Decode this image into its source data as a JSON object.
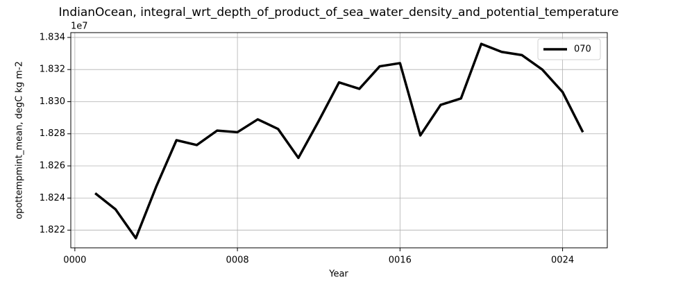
{
  "chart_data": {
    "type": "line",
    "title": "IndianOcean, integral_wrt_depth_of_product_of_sea_water_density_and_potential_temperature",
    "xlabel": "Year",
    "ylabel": "opottempmint_mean, degC kg m-2",
    "y_offset_label": "1e7",
    "x": [
      1,
      2,
      3,
      4,
      5,
      6,
      7,
      8,
      9,
      10,
      11,
      12,
      13,
      14,
      15,
      16,
      17,
      18,
      19,
      20,
      21,
      22,
      23,
      24,
      25
    ],
    "series": [
      {
        "name": "070",
        "color": "#000000",
        "values": [
          1.8243,
          1.8233,
          1.8215,
          1.8247,
          1.8276,
          1.8273,
          1.8282,
          1.8281,
          1.8289,
          1.8283,
          1.8265,
          1.8288,
          1.8312,
          1.8308,
          1.8322,
          1.8324,
          1.8279,
          1.8298,
          1.8302,
          1.8336,
          1.8331,
          1.8329,
          1.832,
          1.8306,
          1.8281
        ]
      }
    ],
    "xlim": [
      -0.2,
      26.2
    ],
    "ylim": [
      1.8209,
      1.8343
    ],
    "xticks": [
      {
        "value": 0,
        "label": "0000"
      },
      {
        "value": 8,
        "label": "0008"
      },
      {
        "value": 16,
        "label": "0016"
      },
      {
        "value": 24,
        "label": "0024"
      }
    ],
    "yticks": [
      1.822,
      1.824,
      1.826,
      1.828,
      {
        "value": 1.83,
        "label": "1.830"
      },
      1.832,
      1.834
    ],
    "grid": true,
    "legend": "upper right"
  }
}
